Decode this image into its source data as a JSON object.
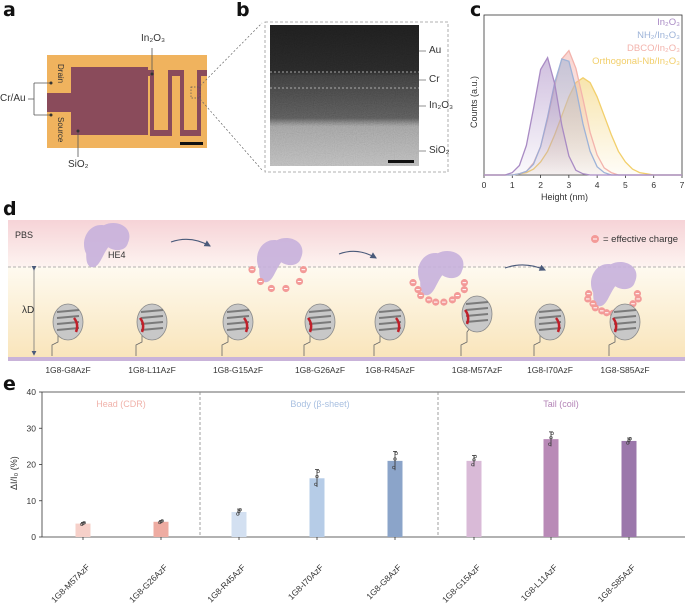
{
  "panels": {
    "a": "a",
    "b": "b",
    "c": "c",
    "d": "d",
    "e": "e"
  },
  "panel_a": {
    "labels": {
      "cr_au": "Cr/Au",
      "drain": "Drain",
      "source": "Source",
      "in2o3": "In₂O₃",
      "sio2": "SiO₂"
    },
    "colors": {
      "gold": "#f2b45e",
      "channel": "#8a4a5a"
    }
  },
  "panel_b": {
    "layers": [
      "Au",
      "Cr",
      "In₂O₃",
      "SiO₂"
    ]
  },
  "panel_d": {
    "pbs": "PBS",
    "target": "HE4",
    "debye_length": "λD",
    "charge_legend": "= effective charge",
    "charges_per_state": [
      0,
      6,
      10,
      13
    ],
    "variants": [
      "1G8-G8AzF",
      "1G8-L11AzF",
      "1G8-G15AzF",
      "1G8-G26AzF",
      "1G8-R45AzF",
      "1G8-M57AzF",
      "1G8-I70AzF",
      "1G8-S85AzF"
    ],
    "colors": {
      "pbs_band": "#f7d9dc",
      "debye_band": "#fbe9c3",
      "substrate": "#c9b3d9",
      "target": "#c7b0dc",
      "charge": "#f08a8a"
    }
  },
  "chart_data": [
    {
      "id": "c",
      "type": "area",
      "xlabel": "Height (nm)",
      "ylabel": "Counts (a.u.)",
      "xlim": [
        0,
        7
      ],
      "ylim": [
        0,
        1.35
      ],
      "xticks": [
        0,
        1,
        2,
        3,
        4,
        5,
        6,
        7
      ],
      "legend_position": "top-right",
      "grid": false,
      "x": [
        0,
        0.25,
        0.5,
        0.75,
        1,
        1.25,
        1.5,
        1.75,
        2,
        2.25,
        2.5,
        2.75,
        3,
        3.25,
        3.5,
        3.75,
        4,
        4.25,
        4.5,
        4.75,
        5,
        5.25,
        5.5,
        5.75,
        6,
        6.25,
        6.5,
        6.75,
        7
      ],
      "series": [
        {
          "name": "In₂O₃",
          "color": "#a98bc4",
          "values": [
            0,
            0,
            0,
            0,
            0.02,
            0.08,
            0.25,
            0.56,
            0.89,
            0.99,
            0.77,
            0.42,
            0.16,
            0.04,
            0.01,
            0,
            0,
            0,
            0,
            0,
            0,
            0,
            0,
            0,
            0,
            0,
            0,
            0,
            0
          ]
        },
        {
          "name": "NH₂/In₂O₃",
          "color": "#9db3d8",
          "values": [
            0,
            0,
            0,
            0,
            0,
            0.01,
            0.03,
            0.09,
            0.24,
            0.49,
            0.78,
            0.98,
            0.96,
            0.73,
            0.43,
            0.2,
            0.07,
            0.02,
            0,
            0,
            0,
            0,
            0,
            0,
            0,
            0,
            0,
            0,
            0
          ]
        },
        {
          "name": "DBCO/In₂O₃",
          "color": "#f3b3ac",
          "values": [
            0,
            0,
            0,
            0,
            0,
            0.01,
            0.03,
            0.1,
            0.24,
            0.47,
            0.75,
            0.98,
            1.05,
            0.9,
            0.64,
            0.36,
            0.17,
            0.06,
            0.02,
            0,
            0,
            0,
            0,
            0,
            0,
            0,
            0,
            0,
            0
          ]
        },
        {
          "name": "Orthogonal-Nb/In₂O₃",
          "color": "#f2cf6b",
          "values": [
            0,
            0,
            0,
            0,
            0,
            0.01,
            0.02,
            0.05,
            0.11,
            0.2,
            0.34,
            0.5,
            0.66,
            0.78,
            0.82,
            0.78,
            0.66,
            0.5,
            0.34,
            0.2,
            0.11,
            0.05,
            0.02,
            0.01,
            0,
            0,
            0,
            0,
            0
          ]
        }
      ]
    },
    {
      "id": "e",
      "type": "bar",
      "ylabel": "ΔI/I₀ (%)",
      "ylim": [
        0,
        40
      ],
      "yticks": [
        0,
        10,
        20,
        30,
        40
      ],
      "grid": false,
      "categories": [
        "1G8-M57AzF",
        "1G8-G26AzF",
        "1G8-R45AzF",
        "1G8-I70AzF",
        "1G8-G8AzF",
        "1G8-G15AzF",
        "1G8-L11AzF",
        "1G8-S85AzF"
      ],
      "values": [
        3.7,
        4.2,
        6.9,
        16.2,
        21.0,
        21.0,
        27.0,
        26.5
      ],
      "errors": [
        0.3,
        0.3,
        0.8,
        2.4,
        2.6,
        1.5,
        2.0,
        0.8
      ],
      "colors": [
        "#f6d0c9",
        "#eeaca2",
        "#d3e0f1",
        "#b6cce7",
        "#8ba4c9",
        "#d9bad7",
        "#b98ab7",
        "#9b77ab"
      ],
      "groups": [
        {
          "label": "Head (CDR)",
          "color": "#f0b2aa",
          "span": [
            0,
            1
          ]
        },
        {
          "label": "Body (β-sheet)",
          "color": "#a9c0e1",
          "span": [
            2,
            4
          ]
        },
        {
          "label": "Tail (coil)",
          "color": "#b383b6",
          "span": [
            5,
            7
          ]
        }
      ]
    }
  ]
}
